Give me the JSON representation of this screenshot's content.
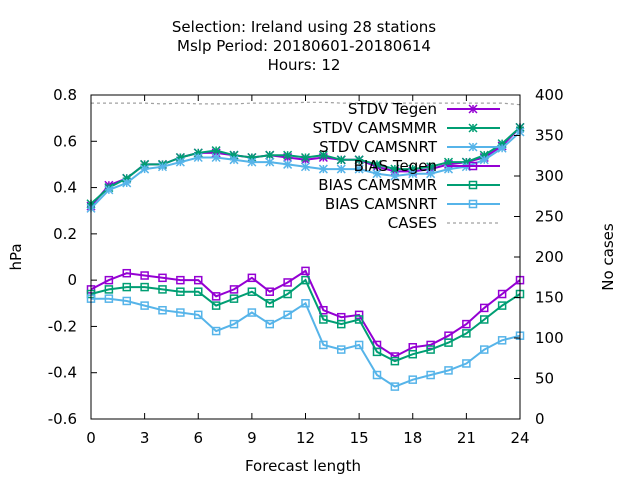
{
  "chart_data": {
    "type": "line",
    "title_lines": [
      "Selection: Ireland using    28 stations",
      "Mslp   Period: 20180601-20180614",
      "Hours:  12"
    ],
    "xlabel": "Forecast length",
    "ylabel": "hPa",
    "y2label": "No cases",
    "xlim": [
      0,
      24
    ],
    "ylim": [
      -0.6,
      0.8
    ],
    "y2lim": [
      0,
      400
    ],
    "x_ticks": [
      0,
      3,
      6,
      9,
      12,
      15,
      18,
      21,
      24
    ],
    "y_ticks": [
      "-0.6",
      "-0.4",
      "-0.2",
      "0",
      "0.2",
      "0.4",
      "0.6",
      "0.8"
    ],
    "y2_ticks": [
      "0",
      "50",
      "100",
      "150",
      "200",
      "250",
      "300",
      "350",
      "400"
    ],
    "grid": false,
    "legend_position": "top-right",
    "x": [
      0,
      1,
      2,
      3,
      4,
      5,
      6,
      7,
      8,
      9,
      10,
      11,
      12,
      13,
      14,
      15,
      16,
      17,
      18,
      19,
      20,
      21,
      22,
      23,
      24
    ],
    "series": [
      {
        "name": "STDV Tegen",
        "color": "#9400d3",
        "marker": "star",
        "axis": "y1",
        "values": [
          0.32,
          0.41,
          0.44,
          0.5,
          0.5,
          0.53,
          0.55,
          0.55,
          0.54,
          0.53,
          0.54,
          0.53,
          0.52,
          0.53,
          0.52,
          0.52,
          0.49,
          0.47,
          0.47,
          0.48,
          0.5,
          0.51,
          0.53,
          0.58,
          0.66
        ]
      },
      {
        "name": "STDV CAMSMMR",
        "color": "#009e73",
        "marker": "star",
        "axis": "y1",
        "values": [
          0.33,
          0.4,
          0.44,
          0.5,
          0.5,
          0.53,
          0.55,
          0.56,
          0.54,
          0.53,
          0.54,
          0.54,
          0.53,
          0.54,
          0.52,
          0.52,
          0.5,
          0.48,
          0.48,
          0.49,
          0.51,
          0.51,
          0.54,
          0.59,
          0.66
        ]
      },
      {
        "name": "STDV CAMSNRT",
        "color": "#56b4e9",
        "marker": "star",
        "axis": "y1",
        "values": [
          0.31,
          0.39,
          0.42,
          0.48,
          0.49,
          0.51,
          0.53,
          0.53,
          0.52,
          0.51,
          0.51,
          0.5,
          0.49,
          0.48,
          0.48,
          0.48,
          0.46,
          0.45,
          0.46,
          0.46,
          0.48,
          0.49,
          0.52,
          0.57,
          0.64
        ]
      },
      {
        "name": "BIAS Tegen",
        "color": "#9400d3",
        "marker": "square",
        "axis": "y1",
        "values": [
          -0.04,
          0.0,
          0.03,
          0.02,
          0.01,
          0.0,
          0.0,
          -0.07,
          -0.04,
          0.01,
          -0.05,
          -0.01,
          0.04,
          -0.13,
          -0.16,
          -0.15,
          -0.28,
          -0.33,
          -0.29,
          -0.28,
          -0.24,
          -0.19,
          -0.12,
          -0.06,
          0.0
        ]
      },
      {
        "name": "BIAS CAMSMMR",
        "color": "#009e73",
        "marker": "square",
        "axis": "y1",
        "values": [
          -0.06,
          -0.04,
          -0.03,
          -0.03,
          -0.04,
          -0.05,
          -0.05,
          -0.11,
          -0.08,
          -0.05,
          -0.1,
          -0.06,
          0.0,
          -0.17,
          -0.19,
          -0.17,
          -0.31,
          -0.35,
          -0.32,
          -0.3,
          -0.27,
          -0.23,
          -0.17,
          -0.11,
          -0.06
        ]
      },
      {
        "name": "BIAS CAMSNRT",
        "color": "#56b4e9",
        "marker": "square",
        "axis": "y1",
        "values": [
          -0.08,
          -0.08,
          -0.09,
          -0.11,
          -0.13,
          -0.14,
          -0.15,
          -0.22,
          -0.19,
          -0.14,
          -0.19,
          -0.15,
          -0.1,
          -0.28,
          -0.3,
          -0.28,
          -0.41,
          -0.46,
          -0.43,
          -0.41,
          -0.39,
          -0.36,
          -0.3,
          -0.26,
          -0.24
        ]
      },
      {
        "name": "CASES",
        "color": "#a0a0a0",
        "marker": "none",
        "dashed": true,
        "axis": "y2",
        "values": [
          390,
          390,
          390,
          390,
          389,
          390,
          389,
          389,
          389,
          390,
          390,
          390,
          391,
          391,
          390,
          390,
          390,
          390,
          390,
          390,
          390,
          390,
          390,
          390,
          388
        ]
      }
    ]
  }
}
